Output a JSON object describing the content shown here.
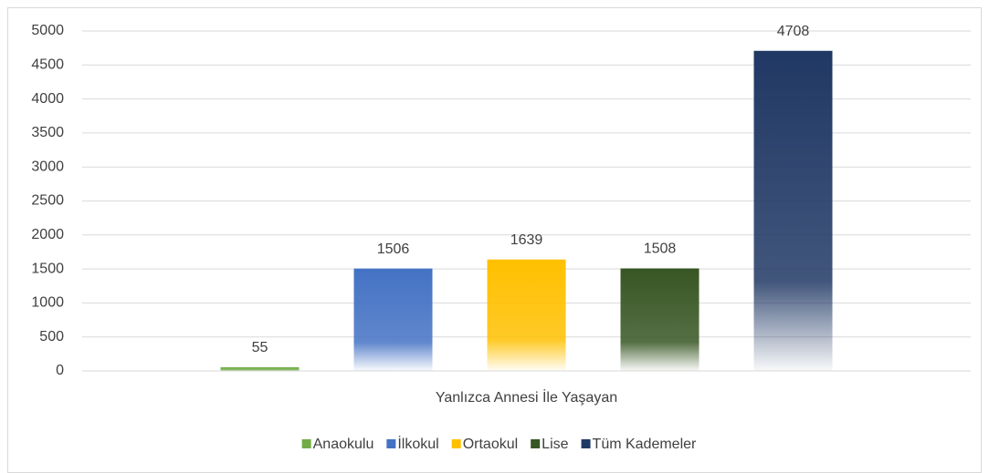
{
  "chart_data": {
    "type": "bar",
    "categories": [
      "Yanlızca Annesi İle Yaşayan"
    ],
    "series": [
      {
        "name": "Anaokulu",
        "color": "#70ad47",
        "values": [
          55
        ]
      },
      {
        "name": "İlkokul",
        "color": "#4472c4",
        "values": [
          1506
        ]
      },
      {
        "name": "Ortaokul",
        "color": "#ffc000",
        "values": [
          1639
        ]
      },
      {
        "name": "Lise",
        "color": "#375623",
        "values": [
          1508
        ]
      },
      {
        "name": "Tüm Kademeler",
        "color": "#203864",
        "values": [
          4708
        ]
      }
    ],
    "ylim": [
      0,
      5000
    ],
    "yticks": [
      0,
      500,
      1000,
      1500,
      2000,
      2500,
      3000,
      3500,
      4000,
      4500,
      5000
    ],
    "grid": true,
    "legend": "bottom",
    "data_labels": true
  }
}
